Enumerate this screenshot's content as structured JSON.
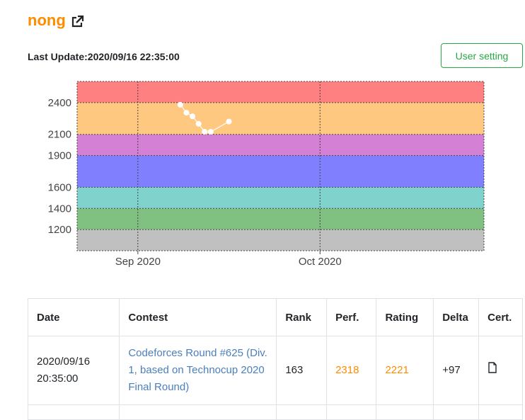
{
  "user": {
    "name": "nong",
    "link_icon": "external-link-icon"
  },
  "last_update": {
    "label": "Last Update:",
    "value": "2020/09/16 22:35:00"
  },
  "buttons": {
    "user_setting": "User setting"
  },
  "colors": {
    "username": "#ff8c00",
    "button_green": "#28a745",
    "link": "#4a7fbd",
    "perf_rating": "#ff8c00"
  },
  "chart_data": {
    "type": "line",
    "title": "",
    "xlabel": "",
    "ylabel": "",
    "x_axis": {
      "type": "date",
      "range": [
        "2020-08-22",
        "2020-10-28"
      ],
      "ticks": [
        {
          "label": "Sep 2020",
          "date": "2020-09-01"
        },
        {
          "label": "Oct 2020",
          "date": "2020-10-01"
        }
      ]
    },
    "y_axis": {
      "range": [
        1000,
        2600
      ],
      "ticks": [
        1200,
        1400,
        1600,
        1900,
        2100,
        2400
      ]
    },
    "bands": [
      {
        "from": 1000,
        "to": 1200,
        "color": "#c0c0c0"
      },
      {
        "from": 1200,
        "to": 1400,
        "color": "#80c080"
      },
      {
        "from": 1400,
        "to": 1600,
        "color": "#80d2cc"
      },
      {
        "from": 1600,
        "to": 1900,
        "color": "#8080ff"
      },
      {
        "from": 1900,
        "to": 2100,
        "color": "#d480d4"
      },
      {
        "from": 2100,
        "to": 2400,
        "color": "#ffc880"
      },
      {
        "from": 2400,
        "to": 2600,
        "color": "#ff8080"
      }
    ],
    "grid": true,
    "series": [
      {
        "color": "#ffffff",
        "points": [
          {
            "date": "2020-09-08",
            "y": 2380
          },
          {
            "date": "2020-09-09",
            "y": 2305
          },
          {
            "date": "2020-09-10",
            "y": 2270
          },
          {
            "date": "2020-09-11",
            "y": 2200
          },
          {
            "date": "2020-09-12",
            "y": 2125
          },
          {
            "date": "2020-09-13",
            "y": 2125
          },
          {
            "date": "2020-09-16",
            "y": 2221
          }
        ]
      }
    ]
  },
  "table": {
    "headers": {
      "date": "Date",
      "contest": "Contest",
      "rank": "Rank",
      "perf": "Perf.",
      "rating": "Rating",
      "delta": "Delta",
      "cert": "Cert."
    },
    "rows": [
      {
        "date_line1": "2020/09/16",
        "date_line2": "20:35:00",
        "contest": "Codeforces Round #625 (Div. 1, based on Technocup 2020 Final Round)",
        "rank": "163",
        "perf": "2318",
        "rating": "2221",
        "delta": "+97",
        "cert_icon": "document-icon"
      }
    ]
  }
}
